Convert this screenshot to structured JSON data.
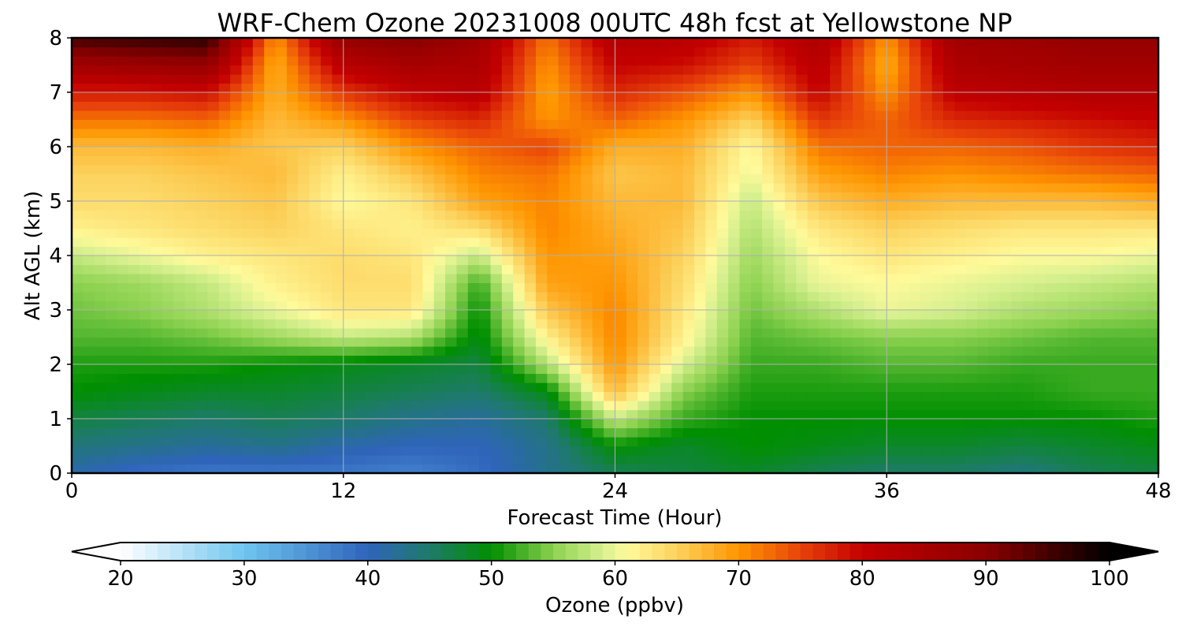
{
  "chart_data": {
    "type": "heatmap",
    "title": "WRF-Chem Ozone  20231008 00UTC 48h fcst at Yellowstone NP",
    "xlabel": "Forecast Time (Hour)",
    "ylabel": "Alt AGL (km)",
    "xlim": [
      0,
      48
    ],
    "ylim": [
      0,
      8
    ],
    "x_ticks": [
      0,
      12,
      24,
      36,
      48
    ],
    "y_ticks": [
      0,
      1,
      2,
      3,
      4,
      5,
      6,
      7,
      8
    ],
    "grid": true,
    "colorbar": {
      "label": "Ozone  (ppbv)",
      "range": [
        20,
        100
      ],
      "ticks": [
        20,
        30,
        40,
        50,
        60,
        70,
        80,
        90,
        100
      ],
      "extend": "both",
      "colors": [
        {
          "value": 20,
          "color": "#ffffff"
        },
        {
          "value": 30,
          "color": "#6ec5f0"
        },
        {
          "value": 40,
          "color": "#2f64bb"
        },
        {
          "value": 45,
          "color": "#1e7a6a"
        },
        {
          "value": 50,
          "color": "#008f00"
        },
        {
          "value": 55,
          "color": "#8bd14f"
        },
        {
          "value": 59,
          "color": "#d7f08f"
        },
        {
          "value": 61,
          "color": "#fffa9b"
        },
        {
          "value": 65,
          "color": "#fcd25d"
        },
        {
          "value": 70,
          "color": "#ff9500"
        },
        {
          "value": 75,
          "color": "#e8430a"
        },
        {
          "value": 80,
          "color": "#c40000"
        },
        {
          "value": 90,
          "color": "#8a0000"
        },
        {
          "value": 100,
          "color": "#000000"
        }
      ]
    },
    "times": [
      0,
      3,
      6,
      9,
      12,
      15,
      18,
      21,
      24,
      27,
      30,
      33,
      36,
      39,
      42,
      45,
      48
    ],
    "altitudes": [
      0,
      0.5,
      1,
      1.5,
      2,
      2.5,
      3,
      3.5,
      4,
      4.5,
      5,
      5.5,
      6,
      6.5,
      7,
      7.5,
      8
    ],
    "ozone_ppbv": [
      [
        41,
        39,
        38,
        38,
        38,
        37,
        39,
        43,
        46,
        47,
        48,
        46,
        45,
        45,
        44,
        46,
        47
      ],
      [
        44,
        43,
        42,
        43,
        41,
        40,
        40,
        43,
        50,
        48,
        50,
        49,
        48,
        48,
        47,
        48,
        49
      ],
      [
        47,
        46,
        45,
        46,
        45,
        43,
        42,
        45,
        58,
        52,
        50,
        50,
        50,
        50,
        50,
        50,
        51
      ],
      [
        50,
        49,
        48,
        48,
        47,
        46,
        45,
        49,
        67,
        55,
        51,
        51,
        51,
        51,
        51,
        52,
        52
      ],
      [
        51,
        51,
        51,
        50,
        49,
        48,
        47,
        57,
        70,
        59,
        52,
        52,
        53,
        53,
        52,
        52,
        52
      ],
      [
        53,
        53,
        54,
        56,
        58,
        57,
        49,
        62,
        71,
        62,
        53,
        54,
        55,
        55,
        54,
        53,
        53
      ],
      [
        54,
        55,
        57,
        60,
        63,
        63,
        50,
        66,
        71,
        63,
        54,
        57,
        60,
        59,
        57,
        56,
        55
      ],
      [
        55,
        56,
        58,
        62,
        64,
        64,
        52,
        69,
        70,
        64,
        55,
        60,
        61,
        60,
        59,
        58,
        57
      ],
      [
        58,
        60,
        62,
        63,
        64,
        63,
        58,
        70,
        69,
        65,
        56,
        61,
        63,
        62,
        61,
        61,
        60
      ],
      [
        62,
        63,
        64,
        65,
        63,
        62,
        64,
        71,
        68,
        66,
        57,
        63,
        65,
        64,
        63,
        63,
        63
      ],
      [
        64,
        64,
        65,
        66,
        61,
        63,
        69,
        71,
        67,
        67,
        58,
        66,
        68,
        67,
        67,
        67,
        68
      ],
      [
        65,
        65,
        66,
        67,
        62,
        66,
        71,
        72,
        66,
        67,
        60,
        69,
        71,
        70,
        71,
        72,
        73
      ],
      [
        67,
        67,
        68,
        66,
        65,
        70,
        73,
        75,
        68,
        68,
        61,
        72,
        73,
        73,
        74,
        76,
        77
      ],
      [
        72,
        72,
        73,
        67,
        70,
        75,
        77,
        70,
        73,
        70,
        65,
        76,
        73,
        77,
        78,
        79,
        80
      ],
      [
        78,
        78,
        79,
        68,
        76,
        80,
        82,
        69,
        77,
        74,
        70,
        80,
        70,
        81,
        82,
        83,
        83
      ],
      [
        86,
        87,
        88,
        68,
        82,
        85,
        84,
        70,
        80,
        79,
        75,
        82,
        68,
        84,
        85,
        86,
        86
      ],
      [
        95,
        96,
        97,
        70,
        88,
        90,
        86,
        72,
        83,
        82,
        78,
        84,
        70,
        86,
        87,
        88,
        88
      ]
    ]
  }
}
